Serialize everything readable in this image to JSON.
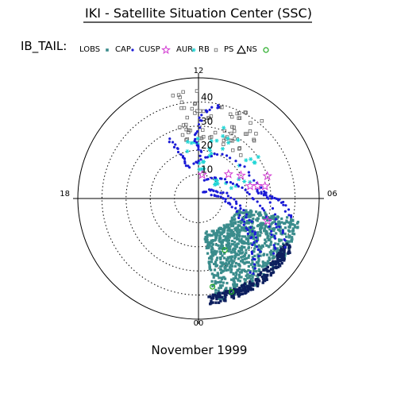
{
  "header": {
    "title": "IKI - Satellite Situation Center (SSC)"
  },
  "footer": {
    "date": "November 1999"
  },
  "legend": {
    "label": "IB_TAIL:",
    "items": [
      {
        "text": "LOBS",
        "symbol": "square",
        "color": "#3a8c8c"
      },
      {
        "text": "CAP",
        "symbol": "dot",
        "color": "#1b1bd6"
      },
      {
        "text": "CUSP",
        "symbol": "star",
        "color": "#d23bd2"
      },
      {
        "text": "AUR",
        "symbol": "asterisk",
        "color": "#22d6d6"
      },
      {
        "text": "RB",
        "symbol": "square-open",
        "color": "#666666"
      },
      {
        "text": "PS",
        "symbol": "triangle-open",
        "color": "#000000"
      },
      {
        "text": "NS",
        "symbol": "circle-open",
        "color": "#22aa22"
      }
    ]
  },
  "chart_data": {
    "type": "scatter",
    "title": "IKI - Satellite Situation Center (SSC)",
    "subtitle": "November 1999",
    "coordinate_system": "polar (magnetic local time / colatitude)",
    "angular_ticks": [
      "12",
      "06",
      "00",
      "18"
    ],
    "radial_ticks": [
      "10",
      "20",
      "30",
      "40"
    ],
    "radial_range": [
      0,
      50
    ],
    "grid": true,
    "legend_position": "top-left",
    "series": [
      {
        "name": "LOBS",
        "marker": "square",
        "color": "#3a8c8c",
        "region": {
          "mlt_range": [
            1,
            5.5
          ],
          "colat_range": [
            8,
            43
          ]
        }
      },
      {
        "name": "CAP",
        "marker": "dot",
        "color": "#1b1bd6",
        "region": {
          "mlt_range": [
            1.5,
            6.5
          ],
          "colat_range": [
            3,
            43
          ]
        }
      },
      {
        "name": "CUSP",
        "marker": "star",
        "color": "#d23bd2",
        "points": [
          [
            8.6,
            16
          ],
          [
            7.9,
            20
          ],
          [
            6.9,
            22
          ],
          [
            6.8,
            25
          ],
          [
            6.7,
            28
          ],
          [
            7.2,
            30
          ],
          [
            11.4,
            10
          ],
          [
            4.8,
            30
          ]
        ]
      },
      {
        "name": "AUR",
        "marker": "asterisk",
        "color": "#22d6d6",
        "region": {
          "mlt_range": [
            6.2,
            9
          ],
          "colat_range": [
            10,
            40
          ]
        }
      },
      {
        "name": "RB",
        "marker": "square-open",
        "color": "#666666",
        "region": {
          "mlt_range": [
            9.0,
            13.0
          ],
          "colat_range": [
            24,
            45
          ]
        }
      },
      {
        "name": "NS",
        "marker": "circle-open",
        "color": "#22aa22",
        "points": [
          [
            1.8,
            24
          ],
          [
            0.6,
            37
          ],
          [
            1.3,
            41
          ]
        ]
      }
    ]
  }
}
